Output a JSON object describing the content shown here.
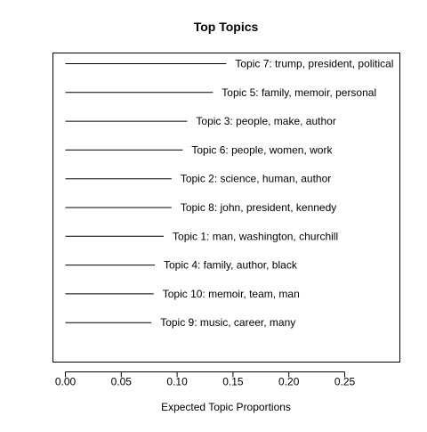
{
  "chart_data": {
    "type": "bar",
    "orientation": "horizontal",
    "mark_style": "line-segment",
    "title": "Top Topics",
    "xlabel": "Expected Topic Proportions",
    "ylabel": "",
    "xlim": [
      0.0,
      0.3
    ],
    "xticks": [
      0.0,
      0.05,
      0.1,
      0.15,
      0.2,
      0.25
    ],
    "xtick_labels": [
      "0.00",
      "0.05",
      "0.10",
      "0.15",
      "0.20",
      "0.25"
    ],
    "grid": false,
    "legend": "none",
    "line_color": "#000000",
    "categories": [
      "Topic 7: trump, president, political",
      "Topic 5: family, memoir, personal",
      "Topic 3: people, make, author",
      "Topic 6: people, women, work",
      "Topic 2: science, human, author",
      "Topic 8: john, president, kennedy",
      "Topic 1: man, washington, churchill",
      "Topic 4: family, author, black",
      "Topic 10: memoir, team, man",
      "Topic 9: music, career, many"
    ],
    "values": [
      0.144,
      0.132,
      0.109,
      0.105,
      0.095,
      0.095,
      0.088,
      0.08,
      0.079,
      0.077
    ]
  }
}
